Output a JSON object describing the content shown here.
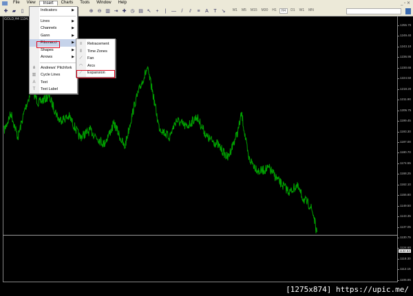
{
  "menubar": {
    "items": [
      "File",
      "View",
      "Insert",
      "Charts",
      "Tools",
      "Window",
      "Help"
    ],
    "active": "Insert"
  },
  "toolbar": {
    "timeframes": [
      "M1",
      "M5",
      "M15",
      "M30",
      "H1",
      "H4",
      "D1",
      "W1",
      "MN"
    ],
    "selected": "H4"
  },
  "chart": {
    "symbol": "GOLD,H4  1134...",
    "line_color": "#00a000",
    "background": "#000000",
    "price_labels": [
      "1255.70",
      "1249.40",
      "1243.10",
      "1236.95",
      "1230.65",
      "1224.50",
      "1218.20",
      "1211.90",
      "1205.75",
      "1199.45",
      "1193.30",
      "1187.00",
      "1180.70",
      "1174.55",
      "1168.25",
      "1162.10",
      "1155.80",
      "1149.50",
      "1143.35",
      "1137.05",
      "1130.75",
      "1124.60",
      "1118.30",
      "1112.15",
      "1105.85"
    ],
    "current_price": "1132.64"
  },
  "insert_menu": {
    "items": [
      {
        "label": "Indicators",
        "submenu": true,
        "icon": ""
      },
      {
        "sep": true
      },
      {
        "label": "Lines",
        "submenu": true,
        "icon": ""
      },
      {
        "label": "Channels",
        "submenu": true,
        "icon": ""
      },
      {
        "label": "Gann",
        "submenu": true,
        "icon": ""
      },
      {
        "label": "Fibonacci",
        "submenu": true,
        "icon": "",
        "highlight": true
      },
      {
        "label": "Shapes",
        "submenu": true,
        "icon": ""
      },
      {
        "label": "Arrows",
        "submenu": true,
        "icon": ""
      },
      {
        "sep": true
      },
      {
        "label": "Andrews' Pitchfork",
        "icon": "pitchfork-icon"
      },
      {
        "label": "Cycle Lines",
        "icon": "cycle-lines-icon"
      },
      {
        "label": "Text",
        "icon": "text-icon"
      },
      {
        "label": "Text Label",
        "icon": "text-label-icon"
      }
    ]
  },
  "fibonacci_submenu": {
    "items": [
      {
        "label": "Retracement",
        "icon": "fib-retracement-icon"
      },
      {
        "label": "Time Zones",
        "icon": "fib-timezones-icon"
      },
      {
        "label": "Fan",
        "icon": "fib-fan-icon"
      },
      {
        "label": "Arcs",
        "icon": "fib-arcs-icon"
      },
      {
        "label": "Expansion",
        "icon": "fib-expansion-icon"
      }
    ]
  },
  "highlight_color": "#e00018",
  "watermark": "[1275x874] https://upic.me/"
}
